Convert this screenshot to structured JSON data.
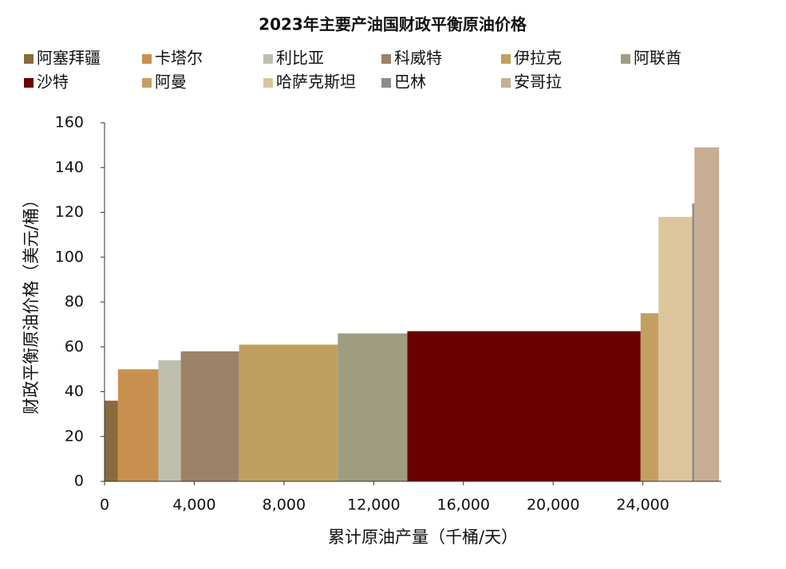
{
  "chart_data": {
    "type": "variwide_bar",
    "title": "2023年主要产油国财政平衡原油价格",
    "categories": [
      "阿塞拜疆",
      "卡塔尔",
      "利比亚",
      "科威特",
      "伊拉克",
      "阿联酋",
      "沙特",
      "阿曼",
      "哈萨克斯坦",
      "巴林",
      "安哥拉"
    ],
    "values": [
      36,
      50,
      54,
      58,
      61,
      66,
      67,
      75,
      118,
      124,
      149
    ],
    "widths": [
      600,
      1800,
      1000,
      2600,
      4400,
      3100,
      10400,
      800,
      1500,
      100,
      1100
    ],
    "colors": [
      "#8b6a3a",
      "#c8904f",
      "#bfbfae",
      "#9b8268",
      "#c0a060",
      "#a09c80",
      "#6b0000",
      "#c4a060",
      "#dcc59b",
      "#8c8c8c",
      "#c8ad95"
    ],
    "xlabel": "累计原油产量（千桶/天）",
    "ylabel": "财政平衡原油价格（美元/桶）",
    "xlim": [
      0,
      27500
    ],
    "ylim": [
      0,
      160
    ],
    "xticks": [
      0,
      {
        "value": 4000,
        "label": "4,000"
      },
      {
        "value": 8000,
        "label": "8,000"
      },
      {
        "value": 12000,
        "label": "12,000"
      },
      {
        "value": 16000,
        "label": "16,000"
      },
      {
        "value": 20000,
        "label": "20,000"
      },
      {
        "value": 24000,
        "label": "24,000"
      }
    ],
    "yticks": [
      0,
      20,
      40,
      60,
      80,
      100,
      120,
      140,
      160
    ]
  }
}
